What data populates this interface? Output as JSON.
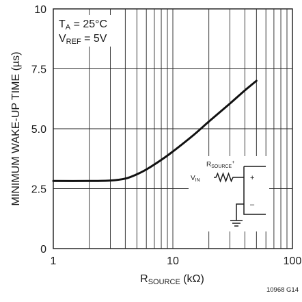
{
  "chart_data": {
    "type": "line",
    "x_scale": "log",
    "xlim": [
      1,
      100
    ],
    "ylim": [
      0,
      10
    ],
    "x_ticks": [
      {
        "value": 1,
        "label": "1"
      },
      {
        "value": 10,
        "label": "10"
      },
      {
        "value": 100,
        "label": "100"
      }
    ],
    "y_ticks": [
      {
        "value": 0,
        "label": "0"
      },
      {
        "value": 2.5,
        "label": "2.5"
      },
      {
        "value": 5,
        "label": "5.0"
      },
      {
        "value": 7.5,
        "label": "7.5"
      },
      {
        "value": 10,
        "label": "10"
      }
    ],
    "xlabel": {
      "main": "R",
      "sub": "SOURCE",
      "unit": " (kΩ)"
    },
    "ylabel": "MINIMUM WAKE-UP TIME (µs)",
    "grid": true,
    "series": [
      {
        "x": [
          1,
          2,
          3,
          4,
          5,
          6,
          8,
          10,
          15,
          20,
          30,
          40,
          50
        ],
        "y": [
          2.82,
          2.82,
          2.84,
          2.92,
          3.1,
          3.3,
          3.7,
          4.05,
          4.75,
          5.3,
          6.05,
          6.6,
          7.0
        ]
      }
    ],
    "conditions": [
      {
        "main": "T",
        "sub": "A",
        "rest": " = 25°C"
      },
      {
        "main": "V",
        "sub": "REF",
        "rest": " = 5V"
      }
    ],
    "inset": {
      "rsource": {
        "main": "R",
        "sub": "SOURCE",
        "sup": "+"
      },
      "vin": {
        "main": "V",
        "sub": "IN"
      },
      "plus": "+",
      "minus": "–"
    },
    "figure_id": "10968 G14"
  }
}
